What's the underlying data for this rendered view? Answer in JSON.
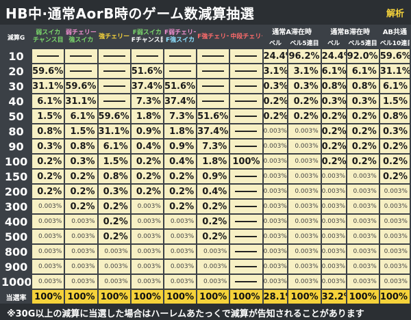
{
  "title": "HB中·通常AorB時のゲーム数減算抽選",
  "tag": "解析",
  "headers": {
    "g": "減算G",
    "cols": [
      {
        "l1": "弱スイカ",
        "l2": "チャンス目",
        "c1": "#7ad66b",
        "c2": "#7ad66b"
      },
      {
        "l1": "弱チェリー",
        "l2": "強スイカ",
        "c1": "#ef8fcf",
        "c2": "#7ad66b"
      },
      {
        "l1": "強チェリー",
        "l2": "",
        "c1": "#f5d33b",
        "c2": "#ffffff"
      },
      {
        "l1": "F弱スイカ",
        "l2": "Fチャンス目",
        "c1": "#7ad66b",
        "c2": "#ffffff"
      },
      {
        "l1": "F弱チェリー",
        "l2": "F強スイカ",
        "c1": "#ef8fcf",
        "c2": "#8ee0ff"
      },
      {
        "l1": "F強チェリー",
        "l2": "",
        "c1": "#ff6b6b",
        "c2": "#ffffff"
      },
      {
        "l1": "中段チェリー",
        "l2": "",
        "c1": "#ff6b6b",
        "c2": "#ffffff"
      }
    ],
    "groupA": "通常A滞在時",
    "groupB": "通常B滞在時",
    "groupAB": "AB共通",
    "subA1": "ベル",
    "subA2": "ベル5連目",
    "subB1": "ベル",
    "subB2": "ベル5連目",
    "subAB": "ベル10連目"
  },
  "rows": [
    {
      "g": "10",
      "v": [
        "—",
        "—",
        "—",
        "—",
        "—",
        "—",
        "—",
        "24.4%",
        "96.2%",
        "24.4%",
        "92.0%",
        "59.6%"
      ]
    },
    {
      "g": "20",
      "v": [
        "59.6%",
        "—",
        "—",
        "51.6%",
        "—",
        "—",
        "—",
        "3.1%",
        "3.1%",
        "6.1%",
        "6.1%",
        "31.1%"
      ]
    },
    {
      "g": "30",
      "v": [
        "31.1%",
        "59.6%",
        "—",
        "37.4%",
        "51.6%",
        "—",
        "—",
        "0.3%",
        "0.3%",
        "0.8%",
        "0.8%",
        "6.1%"
      ]
    },
    {
      "g": "40",
      "v": [
        "6.1%",
        "31.1%",
        "—",
        "7.3%",
        "37.4%",
        "—",
        "—",
        "0.2%",
        "0.2%",
        "0.3%",
        "0.3%",
        "1.5%"
      ]
    },
    {
      "g": "50",
      "v": [
        "1.5%",
        "6.1%",
        "59.6%",
        "1.8%",
        "7.3%",
        "51.6%",
        "—",
        "0.2%",
        "0.2%",
        "0.2%",
        "0.2%",
        "0.8%"
      ]
    },
    {
      "g": "80",
      "v": [
        "0.8%",
        "1.5%",
        "31.1%",
        "0.9%",
        "1.8%",
        "37.4%",
        "—",
        "0.003%",
        "0.003%",
        "0.2%",
        "0.2%",
        "0.3%"
      ]
    },
    {
      "g": "90",
      "v": [
        "0.3%",
        "0.8%",
        "6.1%",
        "0.4%",
        "0.9%",
        "7.3%",
        "—",
        "0.003%",
        "0.003%",
        "0.2%",
        "0.2%",
        "0.2%"
      ]
    },
    {
      "g": "100",
      "v": [
        "0.2%",
        "0.3%",
        "1.5%",
        "0.2%",
        "0.4%",
        "1.8%",
        "100%",
        "0.003%",
        "0.003%",
        "0.2%",
        "0.2%",
        "0.2%"
      ]
    },
    {
      "g": "150",
      "v": [
        "0.2%",
        "0.2%",
        "0.8%",
        "0.2%",
        "0.2%",
        "0.9%",
        "—",
        "0.003%",
        "0.003%",
        "0.003%",
        "0.003%",
        "0.2%"
      ]
    },
    {
      "g": "200",
      "v": [
        "0.2%",
        "0.2%",
        "0.3%",
        "0.2%",
        "0.2%",
        "0.4%",
        "—",
        "0.003%",
        "0.003%",
        "0.003%",
        "0.003%",
        "0.003%"
      ]
    },
    {
      "g": "300",
      "v": [
        "0.003%",
        "0.2%",
        "0.2%",
        "0.003%",
        "0.2%",
        "0.2%",
        "—",
        "0.003%",
        "0.003%",
        "0.003%",
        "0.003%",
        "0.003%"
      ]
    },
    {
      "g": "400",
      "v": [
        "0.003%",
        "0.003%",
        "0.2%",
        "0.003%",
        "0.003%",
        "0.2%",
        "—",
        "0.003%",
        "0.003%",
        "0.003%",
        "0.003%",
        "0.003%"
      ]
    },
    {
      "g": "500",
      "v": [
        "0.003%",
        "0.003%",
        "0.2%",
        "0.003%",
        "0.003%",
        "0.2%",
        "—",
        "0.003%",
        "0.003%",
        "0.003%",
        "0.003%",
        "0.003%"
      ]
    },
    {
      "g": "800",
      "v": [
        "0.003%",
        "0.003%",
        "0.003%",
        "0.003%",
        "0.003%",
        "0.003%",
        "—",
        "0.003%",
        "0.003%",
        "0.003%",
        "0.003%",
        "0.003%"
      ]
    },
    {
      "g": "900",
      "v": [
        "0.003%",
        "0.003%",
        "0.003%",
        "0.003%",
        "0.003%",
        "0.003%",
        "—",
        "0.003%",
        "0.003%",
        "0.003%",
        "0.003%",
        "0.003%"
      ]
    },
    {
      "g": "1000",
      "v": [
        "0.003%",
        "0.003%",
        "0.003%",
        "0.003%",
        "0.003%",
        "0.003%",
        "—",
        "0.003%",
        "0.003%",
        "0.003%",
        "0.003%",
        "0.003%"
      ]
    }
  ],
  "rate": {
    "label": "当選率",
    "v": [
      "100%",
      "100%",
      "100%",
      "100%",
      "100%",
      "100%",
      "100%",
      "28.1%",
      "100%",
      "32.2%",
      "100%",
      "100%"
    ]
  },
  "note": "※30G以上の減算に当選した場合はハーレムあたっくで減算が告知されることがあります"
}
